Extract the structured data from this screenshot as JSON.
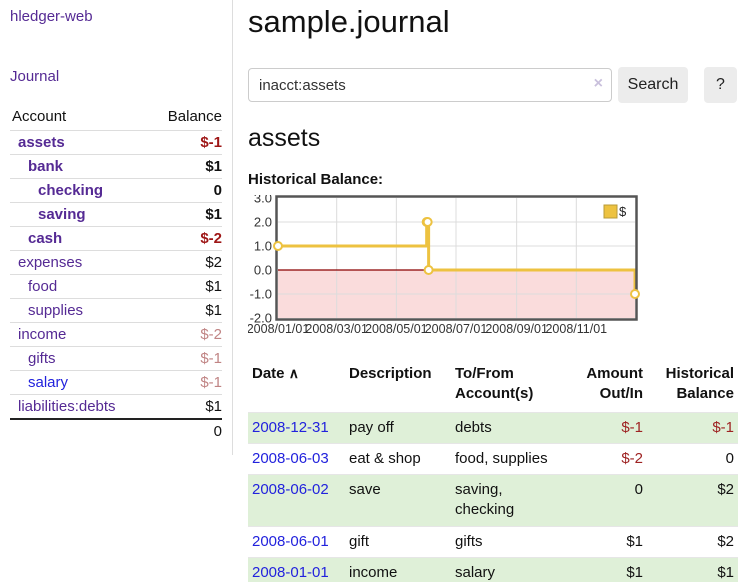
{
  "app": {
    "title": "hledger-web"
  },
  "sidebar": {
    "journal_link": "Journal",
    "accounts": {
      "header": {
        "account": "Account",
        "balance": "Balance"
      },
      "rows": [
        {
          "name": "assets",
          "balance": "$-1"
        },
        {
          "name": "bank",
          "balance": "$1"
        },
        {
          "name": "checking",
          "balance": "0"
        },
        {
          "name": "saving",
          "balance": "$1"
        },
        {
          "name": "cash",
          "balance": "$-2"
        },
        {
          "name": "expenses",
          "balance": "$2"
        },
        {
          "name": "food",
          "balance": "$1"
        },
        {
          "name": "supplies",
          "balance": "$1"
        },
        {
          "name": "income",
          "balance": "$-2"
        },
        {
          "name": "gifts",
          "balance": "$-1"
        },
        {
          "name": "salary",
          "balance": "$-1"
        },
        {
          "name": "liabilities:debts",
          "balance": "$1"
        }
      ],
      "total": "0"
    }
  },
  "header": {
    "title": "sample.journal"
  },
  "search": {
    "query": "inacct:assets",
    "clear_icon": "×",
    "button": "Search",
    "help_button": "?"
  },
  "account_page": {
    "heading": "assets",
    "chart_title": "Historical Balance:"
  },
  "chart_data": {
    "type": "line",
    "step": true,
    "title": "Historical Balance",
    "series": [
      {
        "name": "$",
        "color": "#edc240",
        "points": [
          [
            "2008-01-01",
            1
          ],
          [
            "2008-06-01",
            2
          ],
          [
            "2008-06-02",
            2
          ],
          [
            "2008-06-03",
            0
          ],
          [
            "2008-12-31",
            -1
          ]
        ]
      }
    ],
    "ylim": [
      -2,
      3
    ],
    "yticks": [
      3.0,
      2.0,
      1.0,
      0.0,
      -1.0,
      -2.0
    ],
    "xticks": [
      "2008/01/01",
      "2008/03/01",
      "2008/05/01",
      "2008/07/01",
      "2008/09/01",
      "2008/11/01"
    ],
    "grid": true,
    "negative_region_fill": "#fadcdc",
    "zero_line_color": "#8b0000",
    "plot_border_color": "#555",
    "legend": {
      "label": "$",
      "position": "top-right"
    }
  },
  "register": {
    "columns": {
      "date": "Date",
      "sort_icon": "∧",
      "description": "Description",
      "accounts": "To/From Account(s)",
      "amount": "Amount Out/In",
      "balance": "Historical Balance"
    },
    "rows": [
      {
        "date": "2008-12-31",
        "description": "pay off",
        "accounts": "debts",
        "amount": "$-1",
        "balance": "$-1"
      },
      {
        "date": "2008-06-03",
        "description": "eat & shop",
        "accounts": "food, supplies",
        "amount": "$-2",
        "balance": "0"
      },
      {
        "date": "2008-06-02",
        "description": "save",
        "accounts": "saving, checking",
        "amount": "0",
        "balance": "$2"
      },
      {
        "date": "2008-06-01",
        "description": "gift",
        "accounts": "gifts",
        "amount": "$1",
        "balance": "$2"
      },
      {
        "date": "2008-01-01",
        "description": "income",
        "accounts": "salary",
        "amount": "$1",
        "balance": "$1"
      }
    ]
  }
}
